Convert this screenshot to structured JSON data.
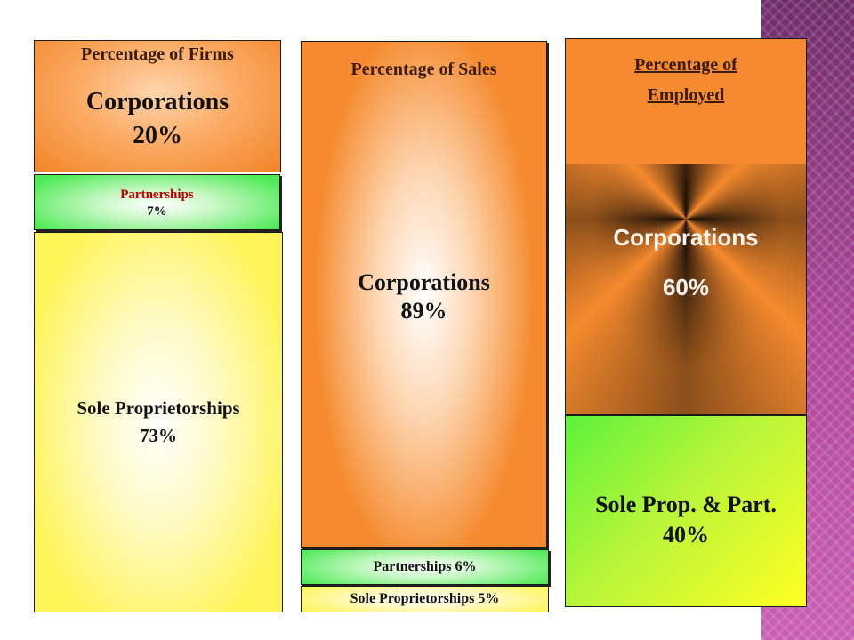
{
  "chart_data": [
    {
      "type": "bar",
      "title": "Percentage of Firms",
      "series": [
        {
          "name": "Corporations",
          "label": "Corporations",
          "value_text": "20%",
          "value": 20
        },
        {
          "name": "Partnerships",
          "label": "Partnerships",
          "value_text": "7%",
          "value": 7
        },
        {
          "name": "Sole Proprietorships",
          "label": "Sole Proprietorships",
          "value_text": "73%",
          "value": 73
        }
      ]
    },
    {
      "type": "bar",
      "title": "Percentage of Sales",
      "series": [
        {
          "name": "Corporations",
          "label": "Corporations",
          "value_text": "89%",
          "value": 89
        },
        {
          "name": "Partnerships",
          "label": "Partnerships",
          "value_text": "6%",
          "value": 6
        },
        {
          "name": "Sole Proprietorships",
          "label": "Sole Proprietorships",
          "value_text": "5%",
          "value": 5
        }
      ]
    },
    {
      "type": "bar",
      "title": "Percentage of Employed",
      "title_lines": [
        "Percentage of",
        "Employed"
      ],
      "series": [
        {
          "name": "Corporations",
          "label": "Corporations",
          "value_text": "60%",
          "value": 60
        },
        {
          "name": "Sole Prop. & Part.",
          "label": "Sole Prop. & Part.",
          "value_text": "40%",
          "value": 40
        }
      ]
    }
  ],
  "colors": {
    "orange": "#f58a2e",
    "green": "#52ee5a",
    "yellow": "#fff75a",
    "partnership_text": "#c00000",
    "stripe": "#b0479d"
  }
}
